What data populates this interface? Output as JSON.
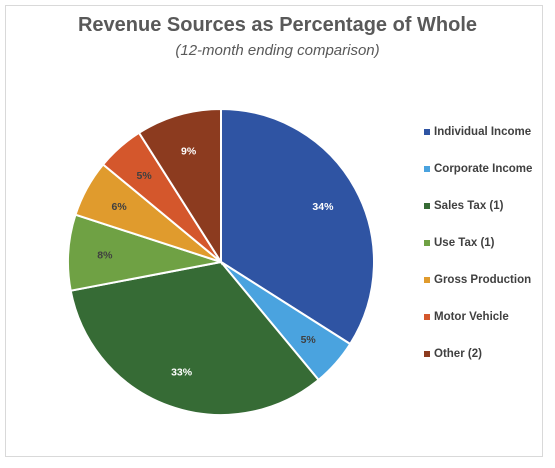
{
  "chart_data": {
    "type": "pie",
    "title": "Revenue Sources as Percentage of Whole",
    "subtitle": "(12-month ending comparison)",
    "slices": [
      {
        "name": "Individual Income",
        "value": 34,
        "label": "34%",
        "color": "#2f54a3",
        "label_color": "#ffffff"
      },
      {
        "name": "Corporate Income",
        "value": 5,
        "label": "5%",
        "color": "#4aa3df",
        "label_color": "#404040"
      },
      {
        "name": "Sales Tax (1)",
        "value": 33,
        "label": "33%",
        "color": "#366b35",
        "label_color": "#ffffff"
      },
      {
        "name": "Use Tax (1)",
        "value": 8,
        "label": "8%",
        "color": "#6fa144",
        "label_color": "#404040"
      },
      {
        "name": "Gross Production",
        "value": 6,
        "label": "6%",
        "color": "#e09b2d",
        "label_color": "#404040"
      },
      {
        "name": "Motor Vehicle",
        "value": 5,
        "label": "5%",
        "color": "#d4572c",
        "label_color": "#404040"
      },
      {
        "name": "Other (2)",
        "value": 9,
        "label": "9%",
        "color": "#8c3b1f",
        "label_color": "#ffffff"
      }
    ],
    "legend_position": "right"
  }
}
